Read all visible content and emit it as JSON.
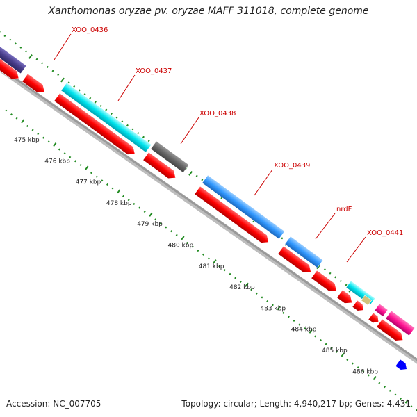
{
  "title": "Xanthomonas oryzae pv. oryzae MAFF 311018, complete genome",
  "accession": "Accession: NC_007705",
  "topology": "Topology: circular; Length: 4,940,217 bp; Genes: 4,431",
  "colors": {
    "backbone": "#999999",
    "cds_forward": "#ff0000",
    "gene_label": "#cc0000",
    "tick": "#228b22",
    "feature_cyan": "#00e5ee",
    "feature_gray": "#666666",
    "feature_blue": "#3399ff",
    "feature_purple": "#483d8b",
    "feature_magenta": "#ff1493",
    "feature_khaki": "#d2c27a",
    "feature_darkblue": "#0000ff"
  },
  "gene_labels": [
    {
      "name": "XOO_0436"
    },
    {
      "name": "XOO_0437"
    },
    {
      "name": "XOO_0438"
    },
    {
      "name": "XOO_0439"
    },
    {
      "name": "nrdF"
    },
    {
      "name": "XOO_0441"
    }
  ],
  "kbp_ticks": [
    "475 kbp",
    "476 kbp",
    "477 kbp",
    "478 kbp",
    "479 kbp",
    "480 kbp",
    "481 kbp",
    "482 kbp",
    "483 kbp",
    "484 kbp",
    "485 kbp",
    "486 kbp"
  ]
}
